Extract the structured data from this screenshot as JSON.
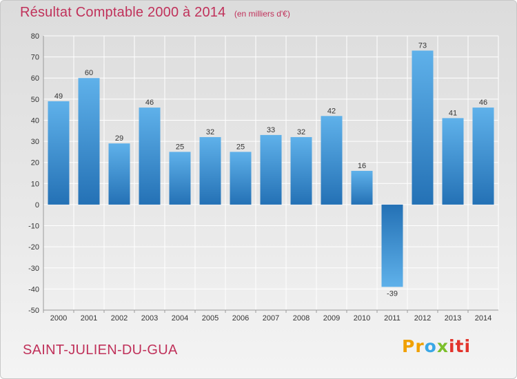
{
  "header": {
    "title": "Résultat Comptable 2000 à 2014",
    "subtitle": "(en milliers d'€)"
  },
  "footer": {
    "commune": "SAINT-JULIEN-DU-GUA",
    "logo_parts": [
      "Pr",
      "o",
      "x",
      "iti"
    ]
  },
  "colors": {
    "title": "#c0315a",
    "bar_light": "#5aade8",
    "bar_dark": "#2573b8",
    "grid": "#ffffff"
  },
  "chart_data": {
    "type": "bar",
    "title": "Résultat Comptable 2000 à 2014",
    "subtitle": "(en milliers d'€)",
    "xlabel": "",
    "ylabel": "",
    "categories": [
      "2000",
      "2001",
      "2002",
      "2003",
      "2004",
      "2005",
      "2006",
      "2007",
      "2008",
      "2009",
      "2010",
      "2011",
      "2012",
      "2013",
      "2014"
    ],
    "values": [
      49,
      60,
      29,
      46,
      25,
      32,
      25,
      33,
      32,
      42,
      16,
      -39,
      73,
      41,
      46
    ],
    "ylim": [
      -50,
      80
    ],
    "yticks": [
      -50,
      -40,
      -30,
      -20,
      -10,
      0,
      10,
      20,
      30,
      40,
      50,
      60,
      70,
      80
    ],
    "grid": true,
    "legend": "none"
  }
}
